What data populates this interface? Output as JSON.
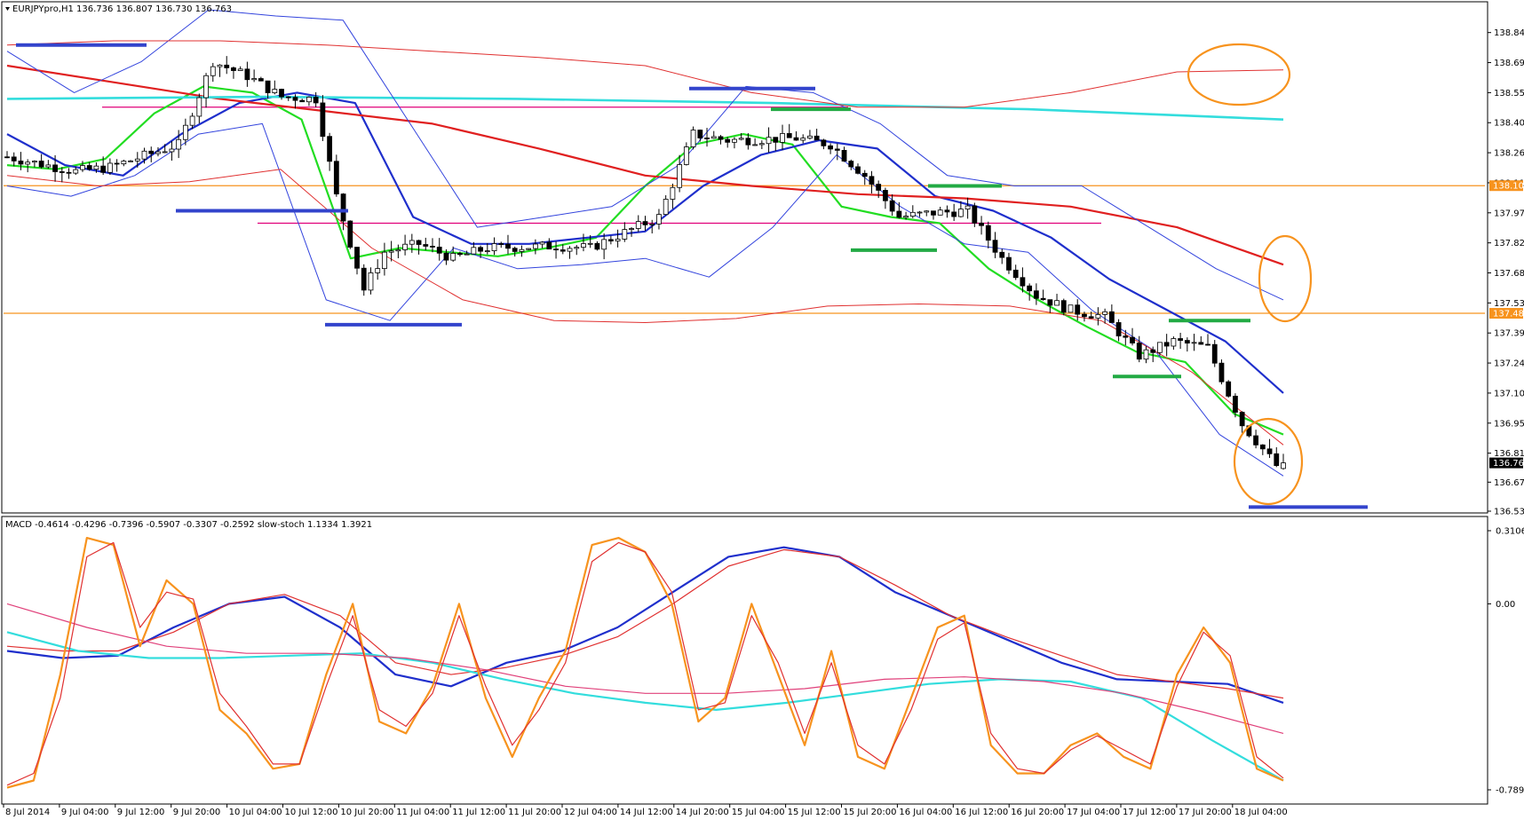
{
  "chart_data": [
    {
      "type": "candlestick",
      "header": "EURJPYpro,H1  136.736 136.807 136.730 136.763",
      "symbol": "EURJPYpro,H1",
      "ohlc_last": {
        "open": 136.736,
        "high": 136.807,
        "low": 136.73,
        "close": 136.763
      },
      "price_ticks": [
        "138.840",
        "138.695",
        "138.550",
        "138.405",
        "138.260",
        "138.115",
        "137.970",
        "137.825",
        "137.680",
        "137.535",
        "137.390",
        "137.245",
        "137.100",
        "136.955",
        "136.810",
        "136.670",
        "136.530"
      ],
      "ylim": [
        136.53,
        138.98
      ],
      "price_tags": [
        {
          "label": "138.101",
          "value": 138.101,
          "color": "#f7931e"
        },
        {
          "label": "137.485",
          "value": 137.485,
          "color": "#f7931e"
        },
        {
          "label": "136.763",
          "value": 136.763,
          "color": "#000000"
        }
      ],
      "time_labels": [
        "8 Jul 2014",
        "9 Jul 04:00",
        "9 Jul 12:00",
        "9 Jul 20:00",
        "10 Jul 04:00",
        "10 Jul 12:00",
        "10 Jul 20:00",
        "11 Jul 04:00",
        "11 Jul 12:00",
        "11 Jul 20:00",
        "12 Jul 04:00",
        "14 Jul 12:00",
        "14 Jul 20:00",
        "15 Jul 04:00",
        "15 Jul 12:00",
        "15 Jul 20:00",
        "16 Jul 04:00",
        "16 Jul 12:00",
        "16 Jul 20:00",
        "17 Jul 04:00",
        "17 Jul 12:00",
        "17 Jul 20:00",
        "18 Jul 04:00"
      ],
      "bars": 220,
      "close_anchors": [
        [
          0,
          138.24
        ],
        [
          10,
          138.17
        ],
        [
          15,
          138.19
        ],
        [
          25,
          138.3
        ],
        [
          30,
          138.7
        ],
        [
          35,
          138.63
        ],
        [
          40,
          138.53
        ],
        [
          45,
          138.52
        ],
        [
          48,
          138.05
        ],
        [
          52,
          137.6
        ],
        [
          55,
          137.78
        ],
        [
          60,
          137.82
        ],
        [
          65,
          137.75
        ],
        [
          70,
          137.8
        ],
        [
          80,
          137.81
        ],
        [
          85,
          137.8
        ],
        [
          95,
          137.95
        ],
        [
          100,
          138.35
        ],
        [
          105,
          138.32
        ],
        [
          115,
          138.33
        ],
        [
          120,
          138.3
        ],
        [
          125,
          138.15
        ],
        [
          130,
          137.95
        ],
        [
          135,
          137.97
        ],
        [
          140,
          137.98
        ],
        [
          145,
          137.75
        ],
        [
          150,
          137.57
        ],
        [
          155,
          137.5
        ],
        [
          160,
          137.47
        ],
        [
          165,
          137.28
        ],
        [
          170,
          137.35
        ],
        [
          175,
          137.32
        ],
        [
          180,
          136.95
        ],
        [
          185,
          136.75
        ],
        [
          186,
          136.763
        ]
      ],
      "overlays": [
        {
          "kind": "ema-fast",
          "color": "#22dd22",
          "values": [
            138.2,
            138.18,
            138.23,
            138.45,
            138.58,
            138.55,
            138.42,
            137.75,
            137.8,
            137.78,
            137.76,
            137.8,
            137.85,
            138.1,
            138.3,
            138.35,
            138.3,
            138.0,
            137.95,
            137.92,
            137.7,
            137.55,
            137.42,
            137.3,
            137.25,
            137.0,
            136.9
          ]
        },
        {
          "kind": "ema-slow",
          "color": "#1f2fcc",
          "values": [
            138.35,
            138.2,
            138.15,
            138.35,
            138.5,
            138.55,
            138.5,
            137.95,
            137.82,
            137.82,
            137.85,
            137.88,
            138.1,
            138.25,
            138.32,
            138.28,
            138.05,
            137.98,
            137.85,
            137.65,
            137.5,
            137.35,
            137.1
          ]
        },
        {
          "kind": "sma-red",
          "color": "#e02020",
          "values": [
            138.68,
            138.6,
            138.52,
            138.46,
            138.4,
            138.28,
            138.15,
            138.1,
            138.06,
            138.04,
            138.0,
            137.9,
            137.72
          ]
        },
        {
          "kind": "sma-cyan",
          "color": "#33dddd",
          "values": [
            138.52,
            138.53,
            138.52,
            138.5,
            138.47,
            138.42
          ]
        },
        {
          "kind": "bb-upper",
          "color": "#3344dd",
          "values": [
            138.75,
            138.55,
            138.7,
            138.95,
            138.92,
            138.9,
            138.4,
            137.9,
            137.95,
            138.0,
            138.2,
            138.58,
            138.55,
            138.4,
            138.15,
            138.1,
            138.1,
            137.9,
            137.7,
            137.55
          ]
        },
        {
          "kind": "bb-lower",
          "color": "#3344dd",
          "values": [
            138.1,
            138.05,
            138.15,
            138.35,
            138.4,
            137.55,
            137.45,
            137.8,
            137.7,
            137.72,
            137.75,
            137.66,
            137.9,
            138.25,
            138.0,
            137.82,
            137.78,
            137.5,
            137.3,
            136.9,
            136.7
          ]
        },
        {
          "kind": "env-upper",
          "color": "#e03030",
          "values": [
            138.78,
            138.8,
            138.8,
            138.78,
            138.75,
            138.72,
            138.68,
            138.55,
            138.48,
            138.48,
            138.55,
            138.65,
            138.66
          ]
        },
        {
          "kind": "env-lower",
          "color": "#e03030",
          "values": [
            138.15,
            138.1,
            138.12,
            138.18,
            137.8,
            137.55,
            137.45,
            137.44,
            137.46,
            137.52,
            137.53,
            137.52,
            137.45,
            137.2,
            136.85
          ]
        }
      ],
      "levels": [
        {
          "kind": "horizontal",
          "color": "#f7931e",
          "value": 138.101
        },
        {
          "kind": "horizontal",
          "color": "#f7931e",
          "value": 137.485
        },
        {
          "kind": "segment",
          "color": "#e0007a",
          "value": 138.48
        },
        {
          "kind": "segment",
          "color": "#e0007a",
          "value": 137.92
        }
      ],
      "marks": [
        {
          "color": "#3344cc",
          "value": 138.78
        },
        {
          "color": "#3344cc",
          "value": 137.98
        },
        {
          "color": "#3344cc",
          "value": 137.43
        },
        {
          "color": "#3344cc",
          "value": 138.57
        },
        {
          "color": "#3344cc",
          "value": 136.55
        },
        {
          "color": "#22aa44",
          "value": 138.47
        },
        {
          "color": "#22aa44",
          "value": 138.1
        },
        {
          "color": "#22aa44",
          "value": 137.79
        },
        {
          "color": "#22aa44",
          "value": 137.45
        },
        {
          "color": "#22aa44",
          "value": 137.18
        }
      ],
      "annotations": [
        "circle",
        "circle",
        "circle"
      ]
    },
    {
      "type": "line",
      "header": "MACD -0.4614 -0.4296 -0.7396 -0.5907 -0.3307 -0.2592  slow-stoch 1.1334 1.3921",
      "ticks": [
        "0.3106",
        "0.00",
        "-0.7896"
      ],
      "ylim": [
        -0.7896,
        0.3106
      ],
      "series": [
        {
          "color": "#1f2fcc",
          "values": [
            -0.2,
            -0.23,
            -0.22,
            -0.1,
            0.0,
            0.03,
            -0.1,
            -0.3,
            -0.35,
            -0.25,
            -0.2,
            -0.1,
            0.05,
            0.2,
            0.24,
            0.2,
            0.05,
            -0.05,
            -0.15,
            -0.25,
            -0.32,
            -0.33,
            -0.34,
            -0.42
          ]
        },
        {
          "color": "#e03030",
          "values": [
            -0.18,
            -0.2,
            -0.2,
            -0.12,
            0.0,
            0.04,
            -0.05,
            -0.25,
            -0.3,
            -0.27,
            -0.22,
            -0.14,
            0.0,
            0.16,
            0.23,
            0.2,
            0.08,
            -0.05,
            -0.14,
            -0.22,
            -0.3,
            -0.33,
            -0.36,
            -0.4
          ]
        },
        {
          "color": "#33dddd",
          "values": [
            -0.12,
            -0.2,
            -0.23,
            -0.23,
            -0.22,
            -0.21,
            -0.25,
            -0.32,
            -0.38,
            -0.42,
            -0.45,
            -0.42,
            -0.38,
            -0.34,
            -0.32,
            -0.33,
            -0.4,
            -0.58,
            -0.75
          ]
        },
        {
          "color": "#e0407a",
          "values": [
            0.0,
            -0.1,
            -0.18,
            -0.21,
            -0.21,
            -0.23,
            -0.28,
            -0.35,
            -0.38,
            -0.38,
            -0.36,
            -0.32,
            -0.31,
            -0.33,
            -0.38,
            -0.46,
            -0.55
          ]
        },
        {
          "color": "#f7931e",
          "values": [
            -0.78,
            -0.75,
            -0.3,
            0.28,
            0.25,
            -0.18,
            0.1,
            0.0,
            -0.45,
            -0.55,
            -0.7,
            -0.68,
            -0.3,
            0.0,
            -0.5,
            -0.55,
            -0.35,
            0.0,
            -0.4,
            -0.65,
            -0.4,
            -0.2,
            0.25,
            0.28,
            0.22,
            0.0,
            -0.5,
            -0.4,
            0.0,
            -0.3,
            -0.6,
            -0.2,
            -0.65,
            -0.7,
            -0.4,
            -0.1,
            -0.05,
            -0.6,
            -0.72,
            -0.72,
            -0.6,
            -0.55,
            -0.65,
            -0.7,
            -0.3,
            -0.1,
            -0.25,
            -0.7,
            -0.75
          ]
        },
        {
          "color": "#e03030",
          "values": [
            -0.77,
            -0.72,
            -0.4,
            0.2,
            0.26,
            -0.1,
            0.05,
            0.02,
            -0.38,
            -0.52,
            -0.68,
            -0.68,
            -0.35,
            -0.05,
            -0.45,
            -0.52,
            -0.38,
            -0.05,
            -0.35,
            -0.6,
            -0.45,
            -0.25,
            0.18,
            0.26,
            0.22,
            0.05,
            -0.45,
            -0.42,
            -0.05,
            -0.25,
            -0.55,
            -0.25,
            -0.6,
            -0.68,
            -0.45,
            -0.15,
            -0.08,
            -0.55,
            -0.7,
            -0.72,
            -0.62,
            -0.56,
            -0.62,
            -0.68,
            -0.35,
            -0.12,
            -0.22,
            -0.65,
            -0.74
          ]
        }
      ]
    }
  ]
}
